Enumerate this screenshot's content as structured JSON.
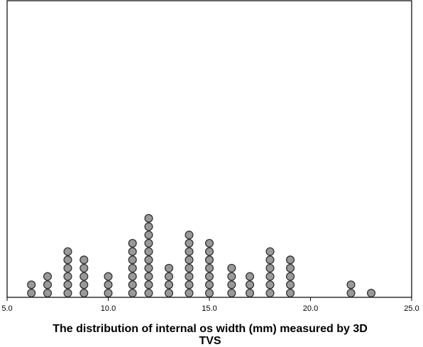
{
  "chart_data": {
    "type": "scatter",
    "subtype": "dot-plot",
    "title": "",
    "xlabel": "The distribution of internal os width (mm) measured by 3D TVS",
    "xlabel_lines": [
      "The distribution of internal os width (mm) measured by 3D",
      "TVS"
    ],
    "ylabel": "",
    "xlim": [
      5.0,
      25.0
    ],
    "x_ticks": [
      "5.0",
      "10.0",
      "15.0",
      "20.0",
      "25.0"
    ],
    "x_tick_values": [
      5,
      10,
      15,
      20,
      25
    ],
    "grid": false,
    "legend": "none",
    "marker_color": "#999999",
    "marker_edge_color": "#333333",
    "points": [
      {
        "x": 6.2,
        "count": 2
      },
      {
        "x": 7.0,
        "count": 3
      },
      {
        "x": 8.0,
        "count": 6
      },
      {
        "x": 8.8,
        "count": 5
      },
      {
        "x": 10.0,
        "count": 3
      },
      {
        "x": 11.2,
        "count": 7
      },
      {
        "x": 12.0,
        "count": 10
      },
      {
        "x": 13.0,
        "count": 4
      },
      {
        "x": 14.0,
        "count": 8
      },
      {
        "x": 15.0,
        "count": 7
      },
      {
        "x": 16.1,
        "count": 4
      },
      {
        "x": 17.0,
        "count": 3
      },
      {
        "x": 18.0,
        "count": 6
      },
      {
        "x": 19.0,
        "count": 5
      },
      {
        "x": 22.0,
        "count": 2
      },
      {
        "x": 23.0,
        "count": 1
      }
    ]
  }
}
